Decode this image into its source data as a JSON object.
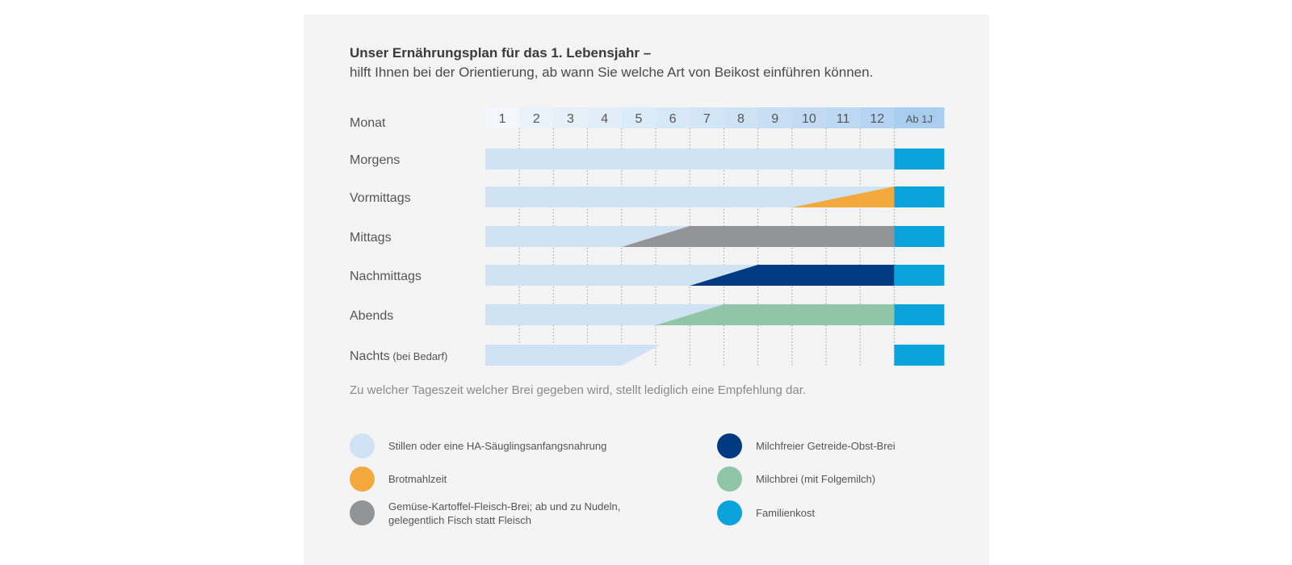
{
  "title": "Unser Ernährungsplan für das 1. Lebensjahr –",
  "subtitle": "hilft Ihnen bei der Orientierung, ab wann Sie welche Art von Beikost einführen können.",
  "note": "Zu welcher Tageszeit welcher Brei gegeben wird, stellt lediglich eine Empfehlung dar.",
  "colors": {
    "breast": "#cfe3f4",
    "bread": "#f4a93d",
    "vegetable": "#939496",
    "grain_fruit": "#003a80",
    "milk_porridge": "#8ec6a7",
    "family": "#0aa3db"
  },
  "chart_data": {
    "type": "gantt",
    "row_header": "Monat",
    "columns": [
      "1",
      "2",
      "3",
      "4",
      "5",
      "6",
      "7",
      "8",
      "9",
      "10",
      "11",
      "12",
      "Ab 1J"
    ],
    "rows": [
      {
        "label": "Morgens",
        "note": "",
        "breast_end": 12,
        "food": null,
        "ramp_start": null,
        "ramp_full": null
      },
      {
        "label": "Vormittags",
        "note": "",
        "breast_end": 12,
        "food": "bread",
        "ramp_start": 9,
        "ramp_full": 12
      },
      {
        "label": "Mittags",
        "note": "",
        "breast_end": 12,
        "food": "vegetable",
        "ramp_start": 4,
        "ramp_full": 6
      },
      {
        "label": "Nachmittags",
        "note": "",
        "breast_end": 12,
        "food": "grain_fruit",
        "ramp_start": 6,
        "ramp_full": 8
      },
      {
        "label": "Abends",
        "note": "",
        "breast_end": 12,
        "food": "milk_porridge",
        "ramp_start": 5,
        "ramp_full": 7
      },
      {
        "label": "Nachts",
        "note": "(bei Bedarf)",
        "breast_end": 5,
        "breast_taper_from": 4,
        "food": null,
        "ramp_start": null,
        "ramp_full": null
      }
    ],
    "family_column": "Ab 1J"
  },
  "legend": [
    {
      "key": "breast",
      "label": "Stillen oder eine HA-Säuglingsanfangsnahrung"
    },
    {
      "key": "bread",
      "label": "Brotmahlzeit"
    },
    {
      "key": "vegetable",
      "label": "Gemüse-Kartoffel-Fleisch-Brei; ab und zu Nudeln,\ngelegentlich Fisch statt Fleisch"
    },
    {
      "key": "grain_fruit",
      "label": "Milchfreier Getreide-Obst-Brei"
    },
    {
      "key": "milk_porridge",
      "label": "Milchbrei (mit Folgemilch)"
    },
    {
      "key": "family",
      "label": "Familienkost"
    }
  ]
}
